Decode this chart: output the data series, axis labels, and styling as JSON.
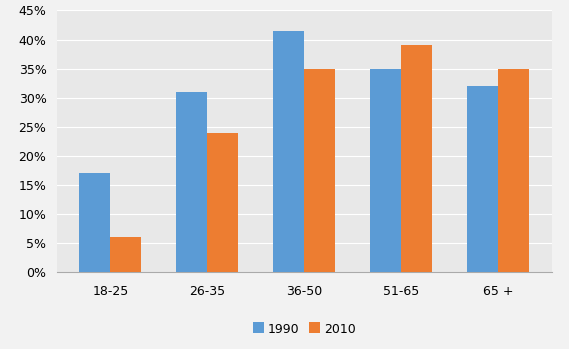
{
  "categories": [
    "18-25",
    "26-35",
    "36-50",
    "51-65",
    "65 +"
  ],
  "values_1990": [
    0.17,
    0.31,
    0.415,
    0.35,
    0.32
  ],
  "values_2010": [
    0.06,
    0.24,
    0.35,
    0.39,
    0.35
  ],
  "color_1990": "#5B9BD5",
  "color_2010": "#ED7D31",
  "legend_labels": [
    "1990",
    "2010"
  ],
  "ylim": [
    0,
    0.45
  ],
  "yticks": [
    0.0,
    0.05,
    0.1,
    0.15,
    0.2,
    0.25,
    0.3,
    0.35,
    0.4,
    0.45
  ],
  "bar_width": 0.32,
  "outer_bg": "#F2F2F2",
  "plot_bg": "#E8E8E8",
  "grid_color": "#FFFFFF"
}
